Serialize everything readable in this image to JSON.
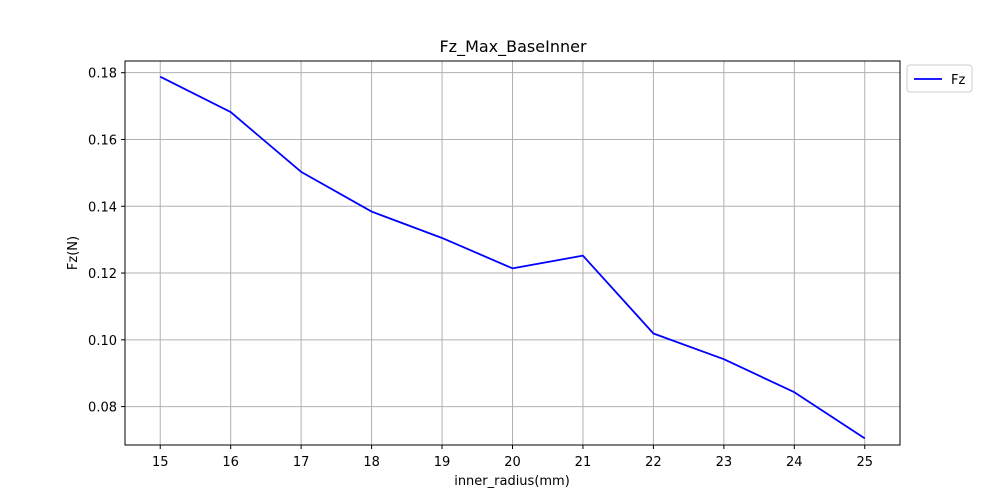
{
  "chart_data": {
    "type": "line",
    "title": "Fz_Max_BaseInner",
    "xlabel": "inner_radius(mm)",
    "ylabel": "Fz(N)",
    "x": [
      15,
      16,
      17,
      18,
      19,
      20,
      21,
      22,
      23,
      24,
      25
    ],
    "xlim": [
      14.5,
      25.5
    ],
    "ylim": [
      0.0685,
      0.1835
    ],
    "xticks": [
      15,
      16,
      17,
      18,
      19,
      20,
      21,
      22,
      23,
      24,
      25
    ],
    "yticks": [
      0.08,
      0.1,
      0.12,
      0.14,
      0.16,
      0.18
    ],
    "ytick_labels": [
      "0.08",
      "0.10",
      "0.12",
      "0.14",
      "0.16",
      "0.18"
    ],
    "grid": true,
    "legend_placement": "outside top-right",
    "series": [
      {
        "name": "Fz",
        "color": "#0000ff",
        "values": [
          0.1788,
          0.1682,
          0.1503,
          0.1384,
          0.1305,
          0.1214,
          0.1252,
          0.1019,
          0.0942,
          0.0843,
          0.0705
        ]
      }
    ]
  }
}
